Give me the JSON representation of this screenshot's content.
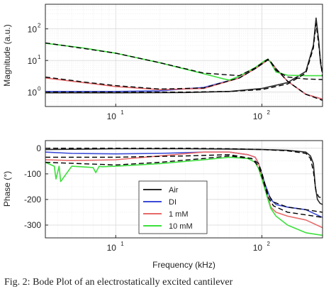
{
  "caption": "Fig. 2: Bode Plot of an electrostatically excited cantilever",
  "chart_data": [
    {
      "type": "line",
      "title": "",
      "xlabel": "",
      "ylabel": "Magnitude (a.u.)",
      "xscale": "log",
      "yscale": "log",
      "xlim": [
        3.3,
        260
      ],
      "ylim": [
        0.35,
        600
      ],
      "grid": true,
      "xticks": [
        {
          "base": "10",
          "exp": "1",
          "value": 10
        },
        {
          "base": "10",
          "exp": "2",
          "value": 100
        }
      ],
      "yticks": [
        {
          "base": "10",
          "exp": "0",
          "value": 1
        },
        {
          "base": "10",
          "exp": "1",
          "value": 10
        },
        {
          "base": "10",
          "exp": "2",
          "value": 100
        }
      ],
      "series": [
        {
          "name": "Air",
          "color": "#2b2b2b",
          "x": [
            3.3,
            10,
            30,
            60,
            100,
            150,
            200,
            225,
            235,
            245,
            252,
            260
          ],
          "y": [
            0.95,
            0.95,
            0.97,
            1.05,
            1.3,
            2.0,
            4.5,
            30,
            220,
            40,
            8,
            4
          ]
        },
        {
          "name": "DI",
          "color": "#3b4bd6",
          "x": [
            3.3,
            10,
            20,
            40,
            70,
            90,
            105,
            110,
            115,
            125,
            150,
            200,
            260
          ],
          "y": [
            1.05,
            1.05,
            1.1,
            1.4,
            2.8,
            5.5,
            9.0,
            10.5,
            9.0,
            5.5,
            2.2,
            0.85,
            0.6
          ]
        },
        {
          "name": "1 mM",
          "color": "#e86a6a",
          "x": [
            3.3,
            6,
            10,
            20,
            40,
            70,
            90,
            105,
            110,
            115,
            125,
            150,
            200,
            260
          ],
          "y": [
            2.8,
            2.0,
            1.5,
            1.2,
            1.3,
            2.8,
            5.5,
            9.0,
            10.5,
            9.0,
            5.5,
            2.2,
            0.85,
            0.6
          ]
        },
        {
          "name": "10 mM",
          "color": "#3de03d",
          "x": [
            3.3,
            6,
            10,
            20,
            40,
            55,
            60,
            70,
            90,
            105,
            110,
            115,
            125,
            150,
            200,
            260
          ],
          "y": [
            35,
            25,
            17,
            8.5,
            3.8,
            2.6,
            2.4,
            3.2,
            6.0,
            10.0,
            11.0,
            8.5,
            4.3,
            3.4,
            3.3,
            3.3
          ]
        }
      ],
      "fits": [
        {
          "x": [
            3.3,
            10,
            30,
            60,
            100,
            150,
            200,
            225,
            235,
            245,
            260
          ],
          "y": [
            1.0,
            1.0,
            1.0,
            1.05,
            1.2,
            1.8,
            4.0,
            25,
            150,
            30,
            3
          ]
        },
        {
          "x": [
            3.3,
            6,
            10,
            20,
            40,
            70,
            90,
            105,
            110,
            115,
            125,
            150,
            200,
            260
          ],
          "y": [
            3.0,
            2.1,
            1.6,
            1.25,
            1.35,
            2.8,
            5.5,
            9.0,
            10.5,
            9.0,
            5.5,
            2.2,
            0.85,
            0.55
          ]
        },
        {
          "x": [
            3.3,
            10,
            20,
            40,
            70,
            90,
            105,
            110,
            115,
            125,
            150,
            200,
            260
          ],
          "y": [
            36,
            17,
            8.5,
            4.0,
            3.3,
            5.8,
            9.5,
            11.0,
            8.8,
            4.8,
            3.0,
            2.6,
            2.5
          ]
        }
      ]
    },
    {
      "type": "line",
      "title": "",
      "xlabel": "Frequency (kHz)",
      "ylabel": "Phase (°)",
      "xscale": "log",
      "yscale": "linear",
      "xlim": [
        3.3,
        260
      ],
      "ylim": [
        -350,
        30
      ],
      "grid": true,
      "xticks": [
        {
          "base": "10",
          "exp": "1",
          "value": 10
        },
        {
          "base": "10",
          "exp": "2",
          "value": 100
        }
      ],
      "yticks": [
        {
          "label": "0",
          "value": 0
        },
        {
          "label": "-100",
          "value": -100
        },
        {
          "label": "-200",
          "value": -200
        },
        {
          "label": "-300",
          "value": -300
        }
      ],
      "legend_position": "lower-center",
      "series": [
        {
          "name": "Air",
          "color": "#2b2b2b",
          "x": [
            3.3,
            10,
            30,
            60,
            100,
            150,
            200,
            215,
            225,
            232,
            240,
            250,
            260
          ],
          "y": [
            -5,
            -2,
            -2,
            -3,
            -5,
            -8,
            -15,
            -30,
            -60,
            -150,
            -200,
            -215,
            -220
          ]
        },
        {
          "name": "DI",
          "color": "#3b4bd6",
          "x": [
            3.3,
            5,
            10,
            20,
            40,
            60,
            80,
            90,
            95,
            100,
            105,
            110,
            115,
            125,
            150,
            200,
            260
          ],
          "y": [
            -15,
            -20,
            -22,
            -20,
            -15,
            -15,
            -25,
            -35,
            -60,
            -100,
            -140,
            -170,
            -200,
            -220,
            -230,
            -240,
            -270
          ]
        },
        {
          "name": "1 mM",
          "color": "#e86a6a",
          "x": [
            3.3,
            5,
            10,
            20,
            40,
            60,
            80,
            90,
            95,
            100,
            105,
            110,
            115,
            125,
            150,
            200,
            260
          ],
          "y": [
            -45,
            -48,
            -45,
            -30,
            -15,
            -15,
            -25,
            -35,
            -60,
            -110,
            -150,
            -190,
            -230,
            -250,
            -265,
            -280,
            -310
          ]
        },
        {
          "name": "10 mM",
          "color": "#3de03d",
          "x": [
            3.3,
            3.8,
            3.9,
            4.1,
            4.2,
            5,
            7,
            7.3,
            7.7,
            8,
            10,
            20,
            40,
            60,
            80,
            90,
            95,
            100,
            105,
            110,
            115,
            125,
            150,
            200,
            260
          ],
          "y": [
            -55,
            -70,
            -120,
            -70,
            -130,
            -70,
            -75,
            -95,
            -70,
            -72,
            -70,
            -60,
            -45,
            -35,
            -40,
            -55,
            -80,
            -120,
            -160,
            -200,
            -235,
            -265,
            -300,
            -330,
            -340
          ]
        }
      ],
      "fits": [
        {
          "x": [
            3.3,
            10,
            30,
            60,
            100,
            150,
            200,
            215,
            225,
            235,
            245,
            260
          ],
          "y": [
            0,
            0,
            0,
            -2,
            -5,
            -10,
            -20,
            -40,
            -90,
            -170,
            -190,
            -195
          ]
        },
        {
          "x": [
            3.3,
            10,
            30,
            60,
            85,
            95,
            100,
            105,
            110,
            120,
            150,
            200,
            260
          ],
          "y": [
            -35,
            -35,
            -30,
            -25,
            -40,
            -60,
            -95,
            -140,
            -180,
            -210,
            -230,
            -240,
            -250
          ]
        },
        {
          "x": [
            3.3,
            10,
            20,
            40,
            60,
            85,
            95,
            100,
            105,
            110,
            120,
            150,
            200,
            260
          ],
          "y": [
            -55,
            -65,
            -55,
            -40,
            -30,
            -40,
            -70,
            -110,
            -150,
            -190,
            -225,
            -250,
            -260,
            -270
          ]
        }
      ]
    }
  ]
}
